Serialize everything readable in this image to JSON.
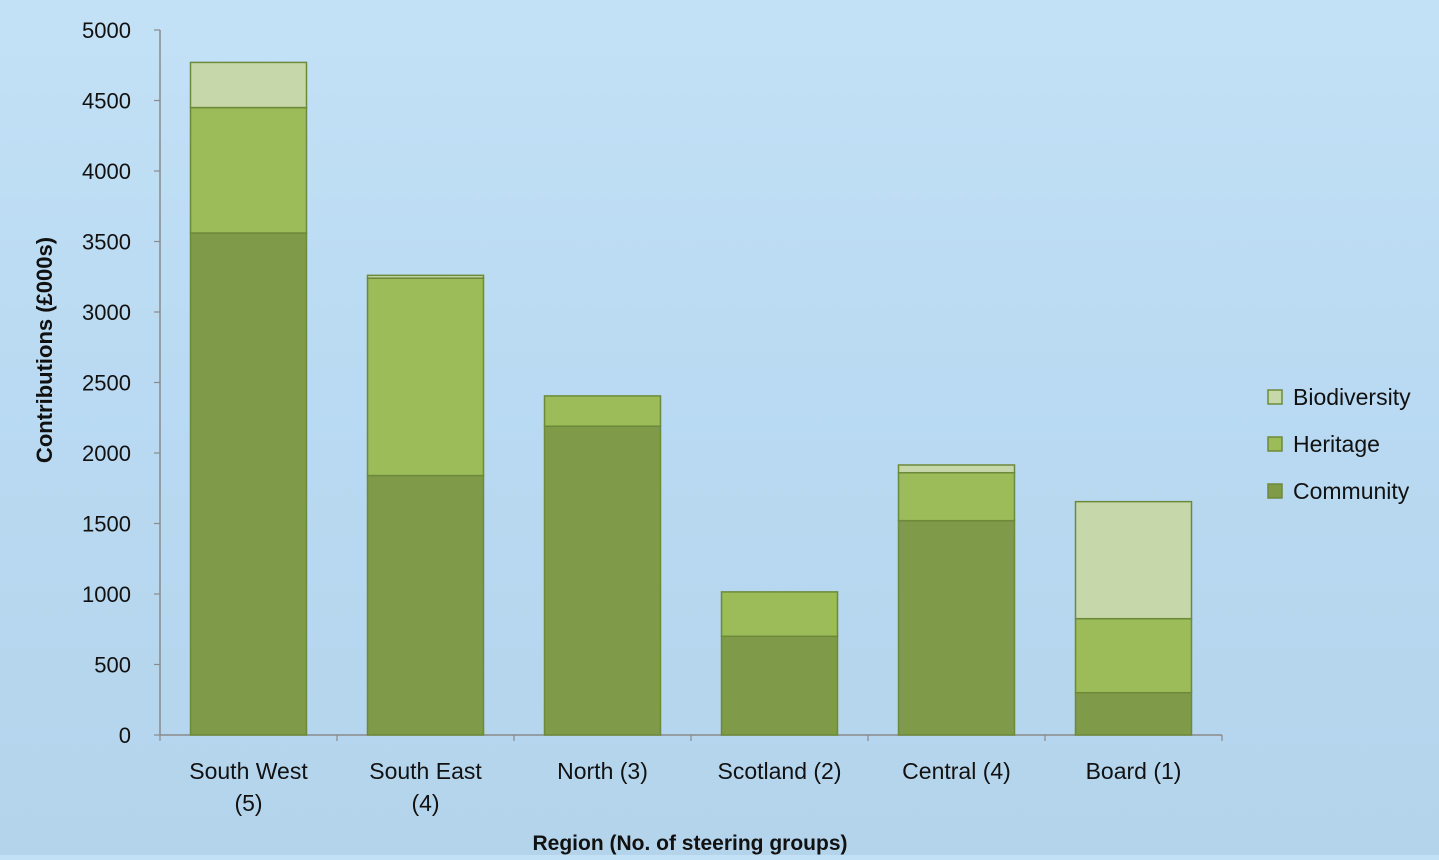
{
  "chart_data": {
    "type": "bar",
    "stacked": true,
    "title": "",
    "xlabel": "Region (No. of steering groups)",
    "ylabel": "Contributions  (£000s)",
    "ylim": [
      0,
      5000
    ],
    "yticks": [
      0,
      500,
      1000,
      1500,
      2000,
      2500,
      3000,
      3500,
      4000,
      4500,
      5000
    ],
    "grid": false,
    "legend_position": "right",
    "categories": [
      [
        "South West",
        "(5)"
      ],
      [
        "South East",
        "(4)"
      ],
      [
        "North (3)"
      ],
      [
        "Scotland (2)"
      ],
      [
        "Central (4)"
      ],
      [
        "Board (1)"
      ]
    ],
    "series": [
      {
        "name": "Community",
        "color": "#7f9a48",
        "values": [
          3560,
          1840,
          2190,
          700,
          1520,
          300
        ]
      },
      {
        "name": "Heritage",
        "color": "#9cbb59",
        "values": [
          890,
          1400,
          215,
          315,
          340,
          525
        ]
      },
      {
        "name": "Biodiversity",
        "color": "#c6d8a9",
        "values": [
          320,
          20,
          0,
          0,
          55,
          830
        ]
      }
    ],
    "legend_order": [
      "Biodiversity",
      "Heritage",
      "Community"
    ]
  }
}
